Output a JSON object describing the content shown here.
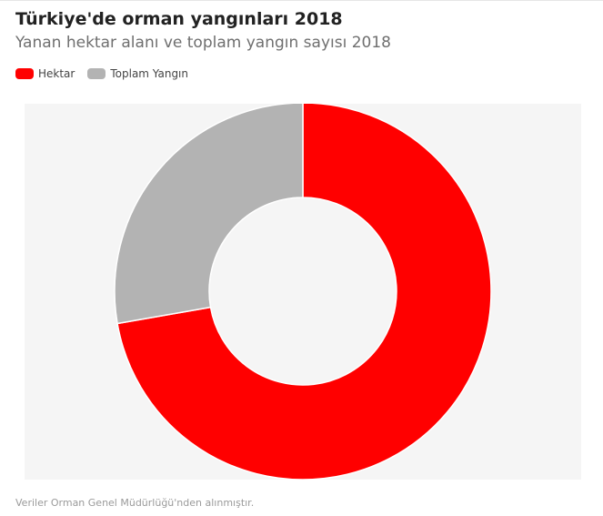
{
  "header": {
    "title": "Türkiye'de orman yangınları 2018",
    "subtitle": "Yanan hektar alanı ve toplam yangın sayısı 2018"
  },
  "legend": [
    {
      "label": "Hektar",
      "color": "#ff0000"
    },
    {
      "label": "Toplam Yangın",
      "color": "#b3b3b3"
    }
  ],
  "footer": {
    "source": "Veriler Orman Genel Müdürlüğü'nden alınmıştır."
  },
  "chart_data": {
    "type": "pie",
    "donut": true,
    "title": "Türkiye'de orman yangınları 2018",
    "subtitle": "Yanan hektar alanı ve toplam yangın sayısı 2018",
    "categories": [
      "Hektar",
      "Toplam Yangın"
    ],
    "values": [
      5644,
      2167
    ],
    "colors": [
      "#ff0000",
      "#b3b3b3"
    ],
    "legend": "top-left"
  }
}
